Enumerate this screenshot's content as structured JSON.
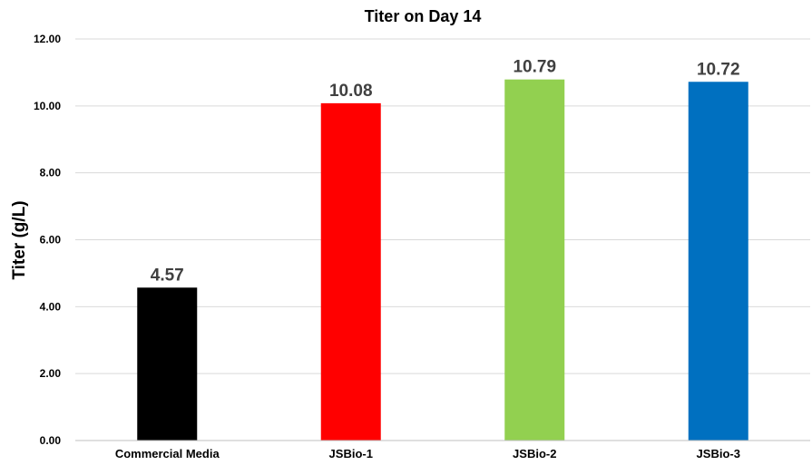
{
  "chart_data": {
    "type": "bar",
    "title": "Titer on Day 14",
    "xlabel": "",
    "ylabel": "Titer (g/L)",
    "ylim": [
      0,
      12
    ],
    "yticks": [
      "0.00",
      "2.00",
      "4.00",
      "6.00",
      "8.00",
      "10.00",
      "12.00"
    ],
    "categories": [
      "Commercial Media",
      "JSBio-1",
      "JSBio-2",
      "JSBio-3"
    ],
    "values": [
      4.57,
      10.08,
      10.79,
      10.72
    ],
    "data_labels": [
      "4.57",
      "10.08",
      "10.79",
      "10.72"
    ],
    "colors": [
      "#000000",
      "#ff0000",
      "#92d050",
      "#0070c0"
    ],
    "grid": true,
    "legend": "none"
  }
}
